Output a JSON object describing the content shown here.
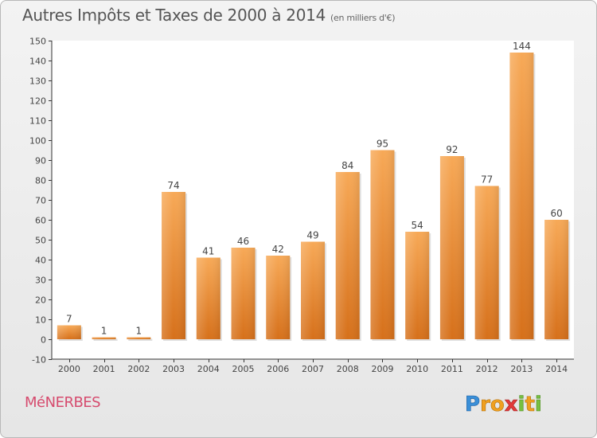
{
  "title": "Autres Impôts et Taxes de 2000 à 2014",
  "title_unit": "(en milliers d'€)",
  "commune": "MéNERBES",
  "logo_text": "Proxiti",
  "colors": {
    "bar_light": "#f6a552",
    "bar_dark": "#d8721a",
    "text": "#555555",
    "commune": "#d64b6e"
  },
  "chart_data": {
    "type": "bar",
    "title": "Autres Impôts et Taxes de 2000 à 2014",
    "subtitle": "(en milliers d'€)",
    "xlabel": "",
    "ylabel": "",
    "categories": [
      "2000",
      "2001",
      "2002",
      "2003",
      "2004",
      "2005",
      "2006",
      "2007",
      "2008",
      "2009",
      "2010",
      "2011",
      "2012",
      "2013",
      "2014"
    ],
    "values": [
      7,
      1,
      1,
      74,
      41,
      46,
      42,
      49,
      84,
      95,
      54,
      92,
      77,
      144,
      60
    ],
    "ylim": [
      -10,
      150
    ],
    "yticks": [
      -10,
      0,
      10,
      20,
      30,
      40,
      50,
      60,
      70,
      80,
      90,
      100,
      110,
      120,
      130,
      140,
      150
    ],
    "grid": false,
    "data_labels": true
  }
}
